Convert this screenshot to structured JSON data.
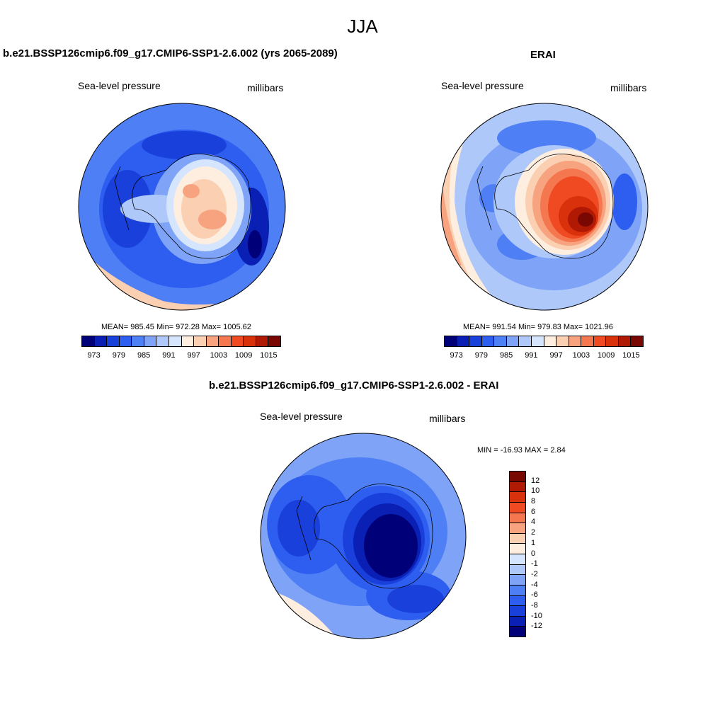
{
  "figure": {
    "title": "JJA",
    "panels": [
      {
        "title": "b.e21.BSSP126cmip6.f09_g17.CMIP6-SSP1-2.6.002 (yrs 2065-2089)",
        "variable": "Sea-level pressure",
        "units": "millibars",
        "stats": "MEAN= 985.45  Min= 972.28  Max= 1005.62",
        "mean": 985.45,
        "min": 972.28,
        "max": 1005.62
      },
      {
        "title": "ERAI",
        "variable": "Sea-level pressure",
        "units": "millibars",
        "stats": "MEAN= 991.54  Min= 979.83  Max= 1021.96",
        "mean": 991.54,
        "min": 979.83,
        "max": 1021.96
      },
      {
        "title": "b.e21.BSSP126cmip6.f09_g17.CMIP6-SSP1-2.6.002 - ERAI",
        "variable": "Sea-level pressure",
        "units": "millibars",
        "stats": "MIN = -16.93 MAX =   2.84",
        "min": -16.93,
        "max": 2.84
      }
    ],
    "colorbar_top": {
      "colors": [
        "#000078",
        "#0a1fb4",
        "#1a40dc",
        "#2d5ef0",
        "#4f7ff5",
        "#7ea3f7",
        "#aec8fa",
        "#d5e5fd",
        "#fdeee0",
        "#fbcfb2",
        "#f7a37f",
        "#f4774f",
        "#f04a23",
        "#d9310b",
        "#b01a05",
        "#7a0802"
      ],
      "labels": [
        "973",
        "979",
        "985",
        "991",
        "997",
        "1003",
        "1009",
        "1015"
      ]
    },
    "colorbar_diff": {
      "colors": [
        "#7a0802",
        "#b01a05",
        "#d9310b",
        "#f04a23",
        "#f4774f",
        "#f7a37f",
        "#fbcfb2",
        "#fdeee0",
        "#d5e5fd",
        "#aec8fa",
        "#7ea3f7",
        "#4f7ff5",
        "#2d5ef0",
        "#1a40dc",
        "#0a1fb4",
        "#000078"
      ],
      "labels": [
        "12",
        "10",
        "8",
        "6",
        "4",
        "2",
        "1",
        "0",
        "-1",
        "-2",
        "-4",
        "-6",
        "-8",
        "-10",
        "-12"
      ]
    }
  }
}
